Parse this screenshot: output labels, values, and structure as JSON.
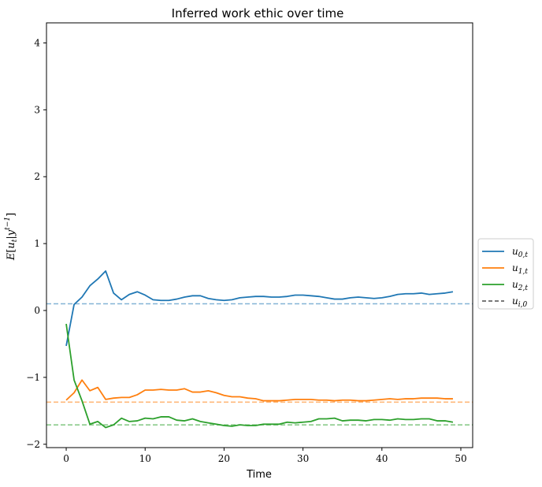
{
  "chart_data": {
    "type": "line",
    "title": "Inferred work ethic over time",
    "xlabel": "Time",
    "ylabel": "E[u_t|y^{t-1}]",
    "xlim": [
      -2.5,
      51.5
    ],
    "ylim": [
      -2.05,
      4.3
    ],
    "xticks": [
      0,
      10,
      20,
      30,
      40,
      50
    ],
    "yticks": [
      -2,
      -1,
      0,
      1,
      2,
      3,
      4
    ],
    "grid": false,
    "legend_position": "outside-right",
    "x": [
      0,
      1,
      2,
      3,
      4,
      5,
      6,
      7,
      8,
      9,
      10,
      11,
      12,
      13,
      14,
      15,
      16,
      17,
      18,
      19,
      20,
      21,
      22,
      23,
      24,
      25,
      26,
      27,
      28,
      29,
      30,
      31,
      32,
      33,
      34,
      35,
      36,
      37,
      38,
      39,
      40,
      41,
      42,
      43,
      44,
      45,
      46,
      47,
      48,
      49
    ],
    "series": [
      {
        "name": "u_{0,t}",
        "color": "#1f77b4",
        "style": "solid",
        "values": [
          -0.53,
          0.09,
          0.2,
          0.37,
          0.47,
          0.59,
          0.26,
          0.16,
          0.24,
          0.28,
          0.23,
          0.16,
          0.15,
          0.15,
          0.17,
          0.2,
          0.22,
          0.22,
          0.18,
          0.16,
          0.15,
          0.16,
          0.19,
          0.2,
          0.21,
          0.21,
          0.2,
          0.2,
          0.21,
          0.23,
          0.23,
          0.22,
          0.21,
          0.19,
          0.17,
          0.17,
          0.19,
          0.2,
          0.19,
          0.18,
          0.19,
          0.21,
          0.24,
          0.25,
          0.25,
          0.26,
          0.24,
          0.25,
          0.26,
          0.28
        ]
      },
      {
        "name": "u_{1,t}",
        "color": "#ff7f0e",
        "style": "solid",
        "values": [
          -1.34,
          -1.23,
          -1.04,
          -1.2,
          -1.15,
          -1.33,
          -1.31,
          -1.3,
          -1.3,
          -1.26,
          -1.19,
          -1.19,
          -1.18,
          -1.19,
          -1.19,
          -1.17,
          -1.22,
          -1.22,
          -1.2,
          -1.23,
          -1.27,
          -1.29,
          -1.29,
          -1.31,
          -1.32,
          -1.35,
          -1.35,
          -1.35,
          -1.34,
          -1.33,
          -1.33,
          -1.33,
          -1.34,
          -1.34,
          -1.35,
          -1.34,
          -1.34,
          -1.35,
          -1.35,
          -1.34,
          -1.33,
          -1.32,
          -1.33,
          -1.32,
          -1.32,
          -1.31,
          -1.31,
          -1.31,
          -1.32,
          -1.32
        ]
      },
      {
        "name": "u_{2,t}",
        "color": "#2ca02c",
        "style": "solid",
        "values": [
          -0.2,
          -1.04,
          -1.35,
          -1.7,
          -1.66,
          -1.75,
          -1.71,
          -1.61,
          -1.66,
          -1.65,
          -1.61,
          -1.62,
          -1.59,
          -1.59,
          -1.64,
          -1.65,
          -1.62,
          -1.66,
          -1.68,
          -1.7,
          -1.72,
          -1.73,
          -1.71,
          -1.72,
          -1.72,
          -1.7,
          -1.7,
          -1.7,
          -1.67,
          -1.68,
          -1.67,
          -1.66,
          -1.62,
          -1.62,
          -1.61,
          -1.65,
          -1.64,
          -1.64,
          -1.65,
          -1.63,
          -1.63,
          -1.64,
          -1.62,
          -1.63,
          -1.63,
          -1.62,
          -1.62,
          -1.65,
          -1.65,
          -1.67
        ]
      }
    ],
    "reference_lines": [
      {
        "y": 0.1,
        "color": "#1f77b4"
      },
      {
        "y": -1.37,
        "color": "#ff7f0e"
      },
      {
        "y": -1.71,
        "color": "#2ca02c"
      }
    ],
    "legend": [
      {
        "label": "u_{0,t}",
        "color": "#1f77b4",
        "style": "solid"
      },
      {
        "label": "u_{1,t}",
        "color": "#ff7f0e",
        "style": "solid"
      },
      {
        "label": "u_{2,t}",
        "color": "#2ca02c",
        "style": "solid"
      },
      {
        "label": "u_{i,0}",
        "color": "#000000",
        "style": "dashed"
      }
    ]
  }
}
